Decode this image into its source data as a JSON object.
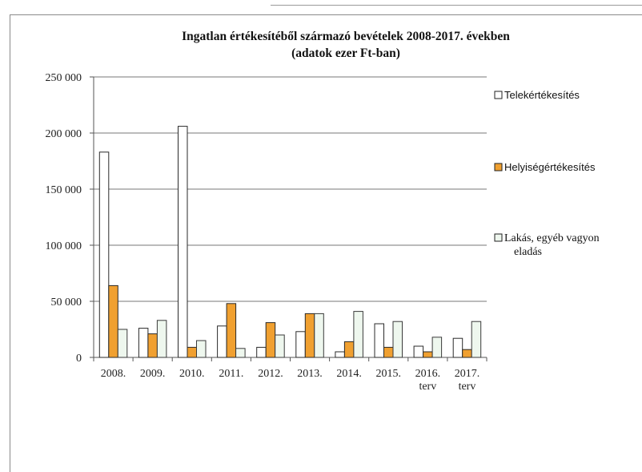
{
  "chart_data": {
    "type": "bar",
    "title": "Ingatlan értékesítéből származó bevételek 2008-2017. években",
    "subtitle": "(adatok ezer Ft-ban)",
    "categories": [
      "2008.",
      "2009.",
      "2010.",
      "2011.",
      "2012.",
      "2013.",
      "2014.",
      "2015.",
      "2016.",
      "2017."
    ],
    "category_sublabels": [
      "",
      "",
      "",
      "",
      "",
      "",
      "",
      "",
      "terv",
      "terv"
    ],
    "ylim": [
      0,
      250000
    ],
    "yticks": [
      0,
      50000,
      100000,
      150000,
      200000,
      250000
    ],
    "ytick_labels": [
      "0",
      "50 000",
      "100 000",
      "150 000",
      "200 000",
      "250 000"
    ],
    "grid": true,
    "legend_position": "right",
    "series": [
      {
        "name": "Telekértékesítés",
        "color": "#ffffff",
        "values": [
          183000,
          26000,
          206000,
          28000,
          9000,
          23000,
          5000,
          30000,
          10000,
          17000
        ]
      },
      {
        "name": "Helyiségértékesítés",
        "color": "#f0a030",
        "values": [
          64000,
          21000,
          9000,
          48000,
          31000,
          39000,
          14000,
          9000,
          5000,
          7000
        ]
      },
      {
        "name": "Lakás, egyéb vagyon",
        "name_line2": "eladás",
        "color": "#eef7ee",
        "values": [
          25000,
          33000,
          15000,
          8000,
          20000,
          39000,
          41000,
          32000,
          18000,
          32000
        ]
      }
    ]
  }
}
